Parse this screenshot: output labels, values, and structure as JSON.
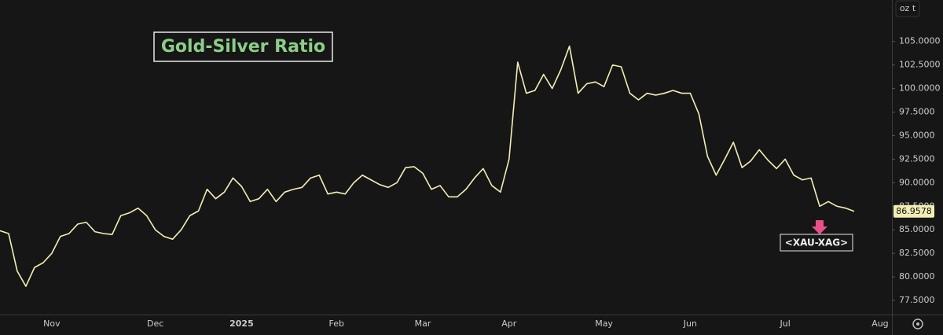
{
  "chart_data": {
    "type": "line",
    "title": "Gold-Silver Ratio",
    "symbol_label": "<XAU-XAG>",
    "unit": "oz t",
    "color": "#f3efb4",
    "categories": [
      null,
      null,
      null,
      null,
      null,
      null,
      "Nov",
      null,
      null,
      null,
      null,
      null,
      null,
      null,
      null,
      null,
      null,
      null,
      "Dec",
      null,
      null,
      null,
      null,
      null,
      null,
      null,
      null,
      null,
      "2025",
      null,
      null,
      null,
      null,
      null,
      null,
      null,
      null,
      null,
      null,
      "Feb",
      null,
      null,
      null,
      null,
      null,
      null,
      null,
      null,
      null,
      "Mar",
      null,
      null,
      null,
      null,
      null,
      null,
      null,
      null,
      null,
      "Apr",
      null,
      null,
      null,
      null,
      null,
      null,
      null,
      null,
      null,
      null,
      "May",
      null,
      null,
      null,
      null,
      null,
      null,
      null,
      null,
      null,
      "Jun",
      null,
      null,
      null,
      null,
      null,
      null,
      null,
      null,
      null,
      null,
      "Jul",
      null,
      null,
      null,
      null,
      null,
      null,
      null,
      null,
      null,
      null,
      "Aug"
    ],
    "values": [
      84.9,
      84.6,
      80.6,
      79.0,
      81.0,
      81.5,
      82.5,
      84.3,
      84.6,
      85.6,
      85.8,
      84.8,
      84.6,
      84.5,
      86.5,
      86.8,
      87.3,
      86.5,
      85.0,
      84.3,
      84.0,
      85.0,
      86.5,
      87.0,
      89.3,
      88.3,
      89.0,
      90.5,
      89.6,
      88.0,
      88.3,
      89.3,
      88.0,
      89.0,
      89.3,
      89.5,
      90.5,
      90.8,
      88.8,
      89.0,
      88.8,
      90.0,
      90.8,
      90.3,
      89.8,
      89.5,
      90.0,
      91.6,
      91.7,
      91.0,
      89.3,
      89.7,
      88.5,
      88.5,
      89.3,
      90.5,
      91.5,
      89.7,
      89.0,
      92.5,
      102.8,
      99.5,
      99.8,
      101.5,
      100.0,
      102.0,
      104.5,
      99.5,
      100.5,
      100.7,
      100.2,
      102.5,
      102.3,
      99.5,
      98.8,
      99.5,
      99.3,
      99.5,
      99.8,
      99.5,
      99.5,
      97.3,
      92.8,
      90.8,
      92.5,
      94.3,
      91.6,
      92.3,
      93.5,
      92.4,
      91.5,
      92.5,
      90.8,
      90.3,
      90.5,
      87.5,
      88.0,
      87.5,
      87.3,
      86.9578,
      null,
      null,
      null
    ],
    "ylim": [
      76,
      109.4
    ],
    "yticks": [
      {
        "value": 77.5,
        "label": "77.5000"
      },
      {
        "value": 80,
        "label": "80.0000"
      },
      {
        "value": 82.5,
        "label": "82.5000"
      },
      {
        "value": 85,
        "label": "85.0000"
      },
      {
        "value": 87.5,
        "label": "87.5000"
      },
      {
        "value": 90,
        "label": "90.0000"
      },
      {
        "value": 92.5,
        "label": "92.5000"
      },
      {
        "value": 95,
        "label": "95.0000"
      },
      {
        "value": 97.5,
        "label": "97.5000"
      },
      {
        "value": 100,
        "label": "100.0000"
      },
      {
        "value": 102.5,
        "label": "102.5000"
      },
      {
        "value": 105,
        "label": "105.0000"
      }
    ],
    "grid": false
  }
}
